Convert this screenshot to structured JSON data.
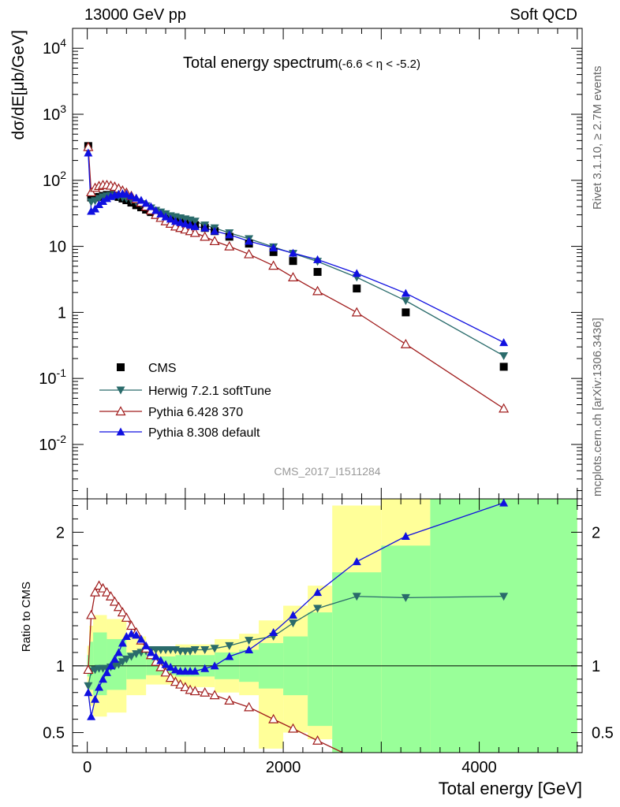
{
  "header": {
    "left": "13000 GeV pp",
    "right": "Soft QCD"
  },
  "side_labels": {
    "rivet": "Rivet 3.1.10, ≥ 2.7M events",
    "mcplots": "mcplots.cern.ch [arXiv:1306.3436]"
  },
  "chart_data": {
    "type": "scatter",
    "title": "Total energy spectrum",
    "title_cut": "(-6.6 < η < -5.2)",
    "watermark": "CMS_2017_I1511284",
    "xlabel": "Total energy [GeV]",
    "ylabel": "dσ/dE[μb/GeV]",
    "ratio_ylabel": "Ratio to CMS",
    "xlim": [
      -150,
      5050
    ],
    "ylim_log": [
      0.0015,
      20000
    ],
    "ratio_ylim": [
      0.35,
      2.25
    ],
    "y_ticks": [
      "10^-2",
      "10^-1",
      "1",
      "10",
      "10^2",
      "10^3",
      "10^4"
    ],
    "x_ticks": [
      0,
      2000,
      4000
    ],
    "ratio_ticks": [
      0.5,
      1,
      2
    ],
    "legend_position": "bottom-left",
    "legend": [
      "CMS",
      "Herwig 7.2.1 softTune",
      "Pythia 6.428 370",
      "Pythia 8.308 default"
    ],
    "band_inner_color": "#99ff99",
    "band_outer_color": "#ffff99",
    "bands": [
      {
        "x0": 0,
        "x1": 20,
        "in": [
          0.92,
          1.08
        ],
        "out": [
          0.85,
          1.15
        ]
      },
      {
        "x0": 20,
        "x1": 60,
        "in": [
          0.82,
          1.18
        ],
        "out": [
          0.7,
          1.3
        ]
      },
      {
        "x0": 60,
        "x1": 200,
        "in": [
          0.78,
          1.25
        ],
        "out": [
          0.62,
          1.38
        ]
      },
      {
        "x0": 200,
        "x1": 400,
        "in": [
          0.82,
          1.2
        ],
        "out": [
          0.65,
          1.35
        ]
      },
      {
        "x0": 400,
        "x1": 600,
        "in": [
          0.9,
          1.1
        ],
        "out": [
          0.78,
          1.22
        ]
      },
      {
        "x0": 600,
        "x1": 900,
        "in": [
          0.93,
          1.07
        ],
        "out": [
          0.86,
          1.14
        ]
      },
      {
        "x0": 900,
        "x1": 1300,
        "in": [
          0.92,
          1.08
        ],
        "out": [
          0.84,
          1.16
        ]
      },
      {
        "x0": 1300,
        "x1": 1550,
        "in": [
          0.9,
          1.1
        ],
        "out": [
          0.8,
          1.2
        ]
      },
      {
        "x0": 1550,
        "x1": 1750,
        "in": [
          0.88,
          1.12
        ],
        "out": [
          0.78,
          1.24
        ]
      },
      {
        "x0": 1750,
        "x1": 2000,
        "in": [
          0.83,
          1.17
        ],
        "out": [
          0.38,
          1.34
        ]
      },
      {
        "x0": 2000,
        "x1": 2250,
        "in": [
          0.78,
          1.22
        ],
        "out": [
          0.5,
          1.45
        ]
      },
      {
        "x0": 2250,
        "x1": 2500,
        "in": [
          0.55,
          1.4
        ],
        "out": [
          0.45,
          1.6
        ]
      },
      {
        "x0": 2500,
        "x1": 3000,
        "in": [
          0.35,
          1.7
        ],
        "out": [
          0.35,
          2.2
        ]
      },
      {
        "x0": 3000,
        "x1": 3500,
        "in": [
          0.35,
          1.9
        ],
        "out": [
          0.35,
          2.25
        ]
      },
      {
        "x0": 3500,
        "x1": 5000,
        "in": [
          0.35,
          2.25
        ],
        "out": [
          0.35,
          2.25
        ]
      }
    ],
    "series": [
      {
        "name": "CMS",
        "color": "#000000",
        "marker": "square",
        "x": [
          10,
          40,
          80,
          120,
          160,
          200,
          240,
          280,
          320,
          360,
          400,
          450,
          500,
          550,
          600,
          650,
          700,
          750,
          800,
          850,
          900,
          950,
          1000,
          1050,
          1100,
          1200,
          1300,
          1450,
          1650,
          1900,
          2100,
          2350,
          2750,
          3250,
          4250
        ],
        "y": [
          330,
          55,
          55,
          56,
          58,
          60,
          60,
          58,
          56,
          53,
          50,
          46,
          42,
          39,
          36,
          33,
          30,
          28,
          27,
          26,
          25,
          24,
          23,
          22,
          21,
          19,
          17,
          14,
          11,
          8.2,
          6.0,
          4.1,
          2.3,
          1.0,
          0.15
        ]
      },
      {
        "name": "Herwig 7.2.1 softTune",
        "color": "#2a6b6b",
        "marker": "triangle-down",
        "x": [
          10,
          40,
          80,
          120,
          160,
          200,
          240,
          280,
          320,
          360,
          400,
          450,
          500,
          550,
          600,
          650,
          700,
          750,
          800,
          850,
          900,
          950,
          1000,
          1050,
          1100,
          1200,
          1300,
          1450,
          1650,
          1900,
          2100,
          2350,
          2750,
          3250,
          4250
        ],
        "y": [
          280,
          47,
          49,
          53,
          56,
          58,
          59,
          58,
          57,
          55,
          53,
          50,
          47,
          44,
          41,
          38,
          35,
          33,
          31,
          29,
          28,
          27,
          26,
          25,
          24,
          21,
          19,
          16,
          13,
          9.8,
          7.8,
          5.9,
          3.4,
          1.5,
          0.22
        ]
      },
      {
        "name": "Pythia 6.428 370",
        "color": "#a01c1c",
        "marker": "triangle-up-open",
        "x": [
          10,
          40,
          80,
          120,
          160,
          200,
          240,
          280,
          320,
          360,
          400,
          450,
          500,
          550,
          600,
          650,
          700,
          750,
          800,
          850,
          900,
          950,
          1000,
          1050,
          1100,
          1200,
          1300,
          1450,
          1650,
          1900,
          2100,
          2350,
          2750,
          3250,
          4250
        ],
        "y": [
          320,
          66,
          77,
          82,
          85,
          85,
          83,
          80,
          75,
          70,
          65,
          58,
          52,
          46,
          40,
          35,
          30,
          27,
          24,
          22,
          20,
          19,
          18,
          17,
          16,
          14,
          12,
          10,
          7.6,
          5.1,
          3.4,
          2.1,
          1.0,
          0.33,
          0.035
        ]
      },
      {
        "name": "Pythia 8.308 default",
        "color": "#1010e0",
        "marker": "triangle-up",
        "x": [
          10,
          40,
          80,
          120,
          160,
          200,
          240,
          280,
          320,
          360,
          400,
          450,
          500,
          550,
          600,
          650,
          700,
          750,
          800,
          850,
          900,
          950,
          1000,
          1050,
          1100,
          1200,
          1300,
          1450,
          1650,
          1900,
          2100,
          2350,
          2750,
          3250,
          4250
        ],
        "y": [
          260,
          34,
          37,
          43,
          48,
          53,
          57,
          60,
          62,
          63,
          62,
          58,
          54,
          50,
          45,
          40,
          35,
          31,
          28,
          26,
          24,
          23,
          22,
          21,
          20,
          19,
          17,
          15,
          12,
          9.5,
          7.9,
          6.3,
          3.9,
          1.95,
          0.35
        ]
      }
    ],
    "ratio_series": [
      {
        "name": "Herwig 7.2.1 softTune",
        "x": [
          10,
          40,
          80,
          120,
          160,
          200,
          240,
          280,
          320,
          360,
          400,
          450,
          500,
          550,
          600,
          650,
          700,
          750,
          800,
          850,
          900,
          950,
          1000,
          1050,
          1100,
          1200,
          1300,
          1450,
          1650,
          1900,
          2100,
          2350,
          2750,
          3250,
          4250
        ],
        "y": [
          0.85,
          0.96,
          0.97,
          0.98,
          0.98,
          0.98,
          0.99,
          1.0,
          1.01,
          1.03,
          1.05,
          1.07,
          1.09,
          1.1,
          1.11,
          1.12,
          1.12,
          1.12,
          1.12,
          1.12,
          1.12,
          1.11,
          1.11,
          1.11,
          1.12,
          1.12,
          1.13,
          1.15,
          1.19,
          1.22,
          1.32,
          1.43,
          1.52,
          1.51,
          1.52
        ]
      },
      {
        "name": "Pythia 6.428 370",
        "x": [
          10,
          40,
          80,
          120,
          160,
          200,
          240,
          280,
          320,
          360,
          400,
          450,
          500,
          550,
          600,
          650,
          700,
          750,
          800,
          850,
          900,
          950,
          1000,
          1050,
          1100,
          1200,
          1300,
          1450,
          1650,
          1900,
          2100,
          2350,
          2750,
          3250,
          4250
        ],
        "y": [
          0.97,
          1.38,
          1.55,
          1.6,
          1.58,
          1.55,
          1.52,
          1.48,
          1.44,
          1.4,
          1.36,
          1.3,
          1.25,
          1.19,
          1.13,
          1.08,
          1.03,
          0.99,
          0.95,
          0.91,
          0.88,
          0.86,
          0.84,
          0.82,
          0.81,
          0.8,
          0.78,
          0.74,
          0.69,
          0.6,
          0.53,
          0.44,
          0.3,
          0.2,
          0.1
        ]
      },
      {
        "name": "Pythia 8.308 default",
        "x": [
          10,
          40,
          80,
          120,
          160,
          200,
          240,
          280,
          320,
          360,
          400,
          450,
          500,
          550,
          600,
          650,
          700,
          750,
          800,
          850,
          900,
          950,
          1000,
          1050,
          1100,
          1200,
          1300,
          1450,
          1650,
          1900,
          2100,
          2350,
          2750,
          3250,
          4250
        ],
        "y": [
          0.8,
          0.62,
          0.75,
          0.84,
          0.9,
          0.95,
          1.0,
          1.05,
          1.1,
          1.17,
          1.22,
          1.24,
          1.23,
          1.2,
          1.15,
          1.1,
          1.07,
          1.04,
          1.01,
          0.99,
          0.97,
          0.96,
          0.96,
          0.96,
          0.96,
          0.98,
          1.0,
          1.07,
          1.12,
          1.25,
          1.38,
          1.55,
          1.78,
          1.97,
          2.22
        ]
      }
    ]
  }
}
